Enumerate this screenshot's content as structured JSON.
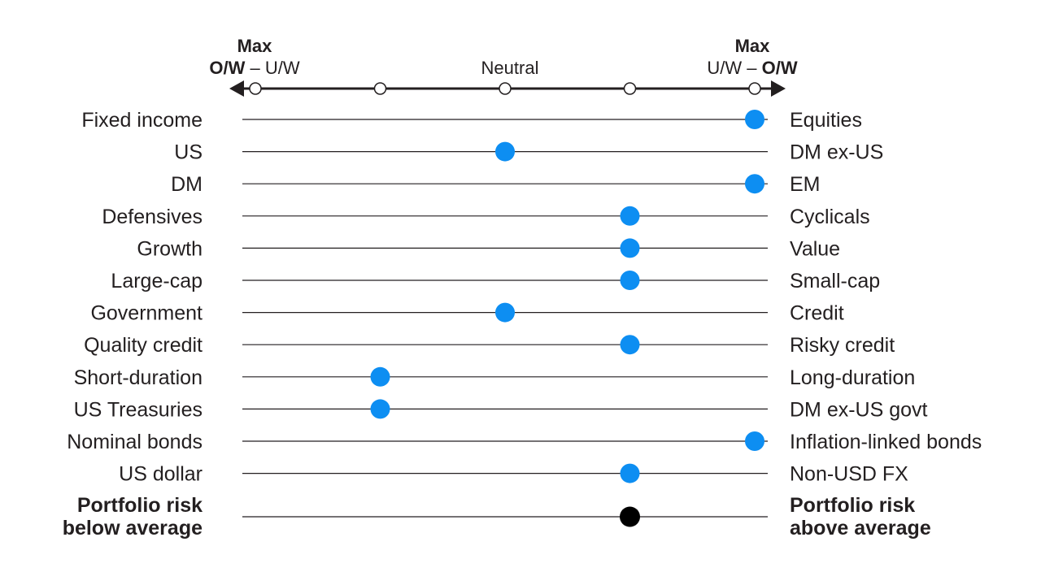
{
  "chart_data": {
    "type": "scatter",
    "scale": {
      "left_end": {
        "top": "Max",
        "bold_part": "O/W",
        "separator": " – ",
        "plain_part": "U/W"
      },
      "center": "Neutral",
      "right_end": {
        "top": "Max",
        "plain_part": "U/W",
        "separator": " – ",
        "bold_part": "O/W"
      },
      "positions": [
        -2,
        -1,
        0,
        1,
        2
      ]
    },
    "rows": [
      {
        "left": "Fixed income",
        "right": "Equities",
        "value": 2
      },
      {
        "left": "US",
        "right": "DM ex-US",
        "value": 0
      },
      {
        "left": "DM",
        "right": "EM",
        "value": 2
      },
      {
        "left": "Defensives",
        "right": "Cyclicals",
        "value": 1
      },
      {
        "left": "Growth",
        "right": "Value",
        "value": 1
      },
      {
        "left": "Large-cap",
        "right": "Small-cap",
        "value": 1
      },
      {
        "left": "Government",
        "right": "Credit",
        "value": 0
      },
      {
        "left": "Quality credit",
        "right": "Risky credit",
        "value": 1
      },
      {
        "left": "Short-duration",
        "right": "Long-duration",
        "value": -1
      },
      {
        "left": "US Treasuries",
        "right": "DM ex-US govt",
        "value": -1
      },
      {
        "left": "Nominal bonds",
        "right": "Inflation-linked bonds",
        "value": 2
      },
      {
        "left": "US dollar",
        "right": "Non-USD FX",
        "value": 1
      }
    ],
    "summary_row": {
      "left_line1": "Portfolio risk",
      "left_line2": "below average",
      "right_line1": "Portfolio risk",
      "right_line2": "above average",
      "value": 1
    },
    "colors": {
      "dot": "#0d8ef2",
      "summary_dot": "#000000",
      "line": "#231f20",
      "axis": "#231f20"
    }
  }
}
